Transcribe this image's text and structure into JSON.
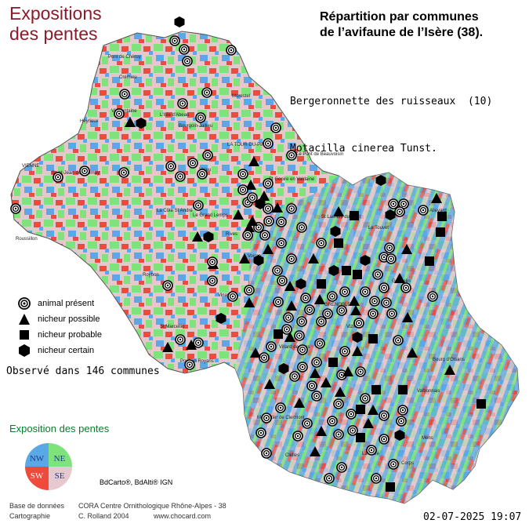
{
  "title_exposition": [
    "Expositions",
    "des pentes"
  ],
  "title_repartition": [
    "Répartition par communes",
    "de l’avifaune de l’Isère (38)."
  ],
  "species": {
    "common_name": "Bergeronnette des ruisseaux  (10)",
    "latin_name": "Motacilla cinerea Tunst."
  },
  "legend": [
    {
      "symbol": "circle-target",
      "label": "animal présent"
    },
    {
      "symbol": "triangle",
      "label": "nicheur possible"
    },
    {
      "symbol": "square",
      "label": "nicheur probable"
    },
    {
      "symbol": "hexagon",
      "label": "nicheur certain"
    }
  ],
  "observed_text": "Observé dans 146 communes",
  "exposition_legend": {
    "title": "Exposition des pentes",
    "quadrants": [
      {
        "label": "NW",
        "color": "#5aa9e6"
      },
      {
        "label": "NE",
        "color": "#7ee37a"
      },
      {
        "label": "SW",
        "color": "#ef4a3c"
      },
      {
        "label": "SE",
        "color": "#e6c9cf"
      }
    ]
  },
  "credit_bd": "BdCarto®, BdAlti® IGN",
  "footer": {
    "line1_label": "Base de données",
    "line1_value": "CORA Centre Ornithologique Rhône-Alpes - 38",
    "line2_label": "Cartographie",
    "line2_value": "C. Rolland 2004",
    "website": "www.chocard.com"
  },
  "date": "02-07-2025 19:07",
  "map_labels": [
    "Pont de Chéruy",
    "Crémieu",
    "Morestel",
    "Heyrieux",
    "Villefontaine",
    "L'Isle d'Abeau",
    "Bourgoin-Jallieu",
    "LA TOUR-DU-PIN",
    "Le Pont de Beauvoisin",
    "VIENNE",
    "Saint-Jean de Bournay",
    "Virieu",
    "St Geoire en Valdaine",
    "Roussillon",
    "La Côte St André",
    "Le Grand Lemps",
    "Rives",
    "St Laurent du Pont",
    "Le Touvet",
    "Allevard",
    "Goncelin",
    "Voiron",
    "Roybon",
    "Vinay",
    "St Marcellin",
    "Pont en Royans",
    "Villard de Lans",
    "GRENOBLE",
    "Vizille",
    "Bourg d'Oisans",
    "Monestier de Clermont",
    "La Mure",
    "Mens",
    "Corps",
    "Clelles",
    "Valbonnais"
  ],
  "colors": {
    "title_exp": "#8b1a2b",
    "expo_title": "#0e7a2a",
    "map_outline": "#555555"
  }
}
